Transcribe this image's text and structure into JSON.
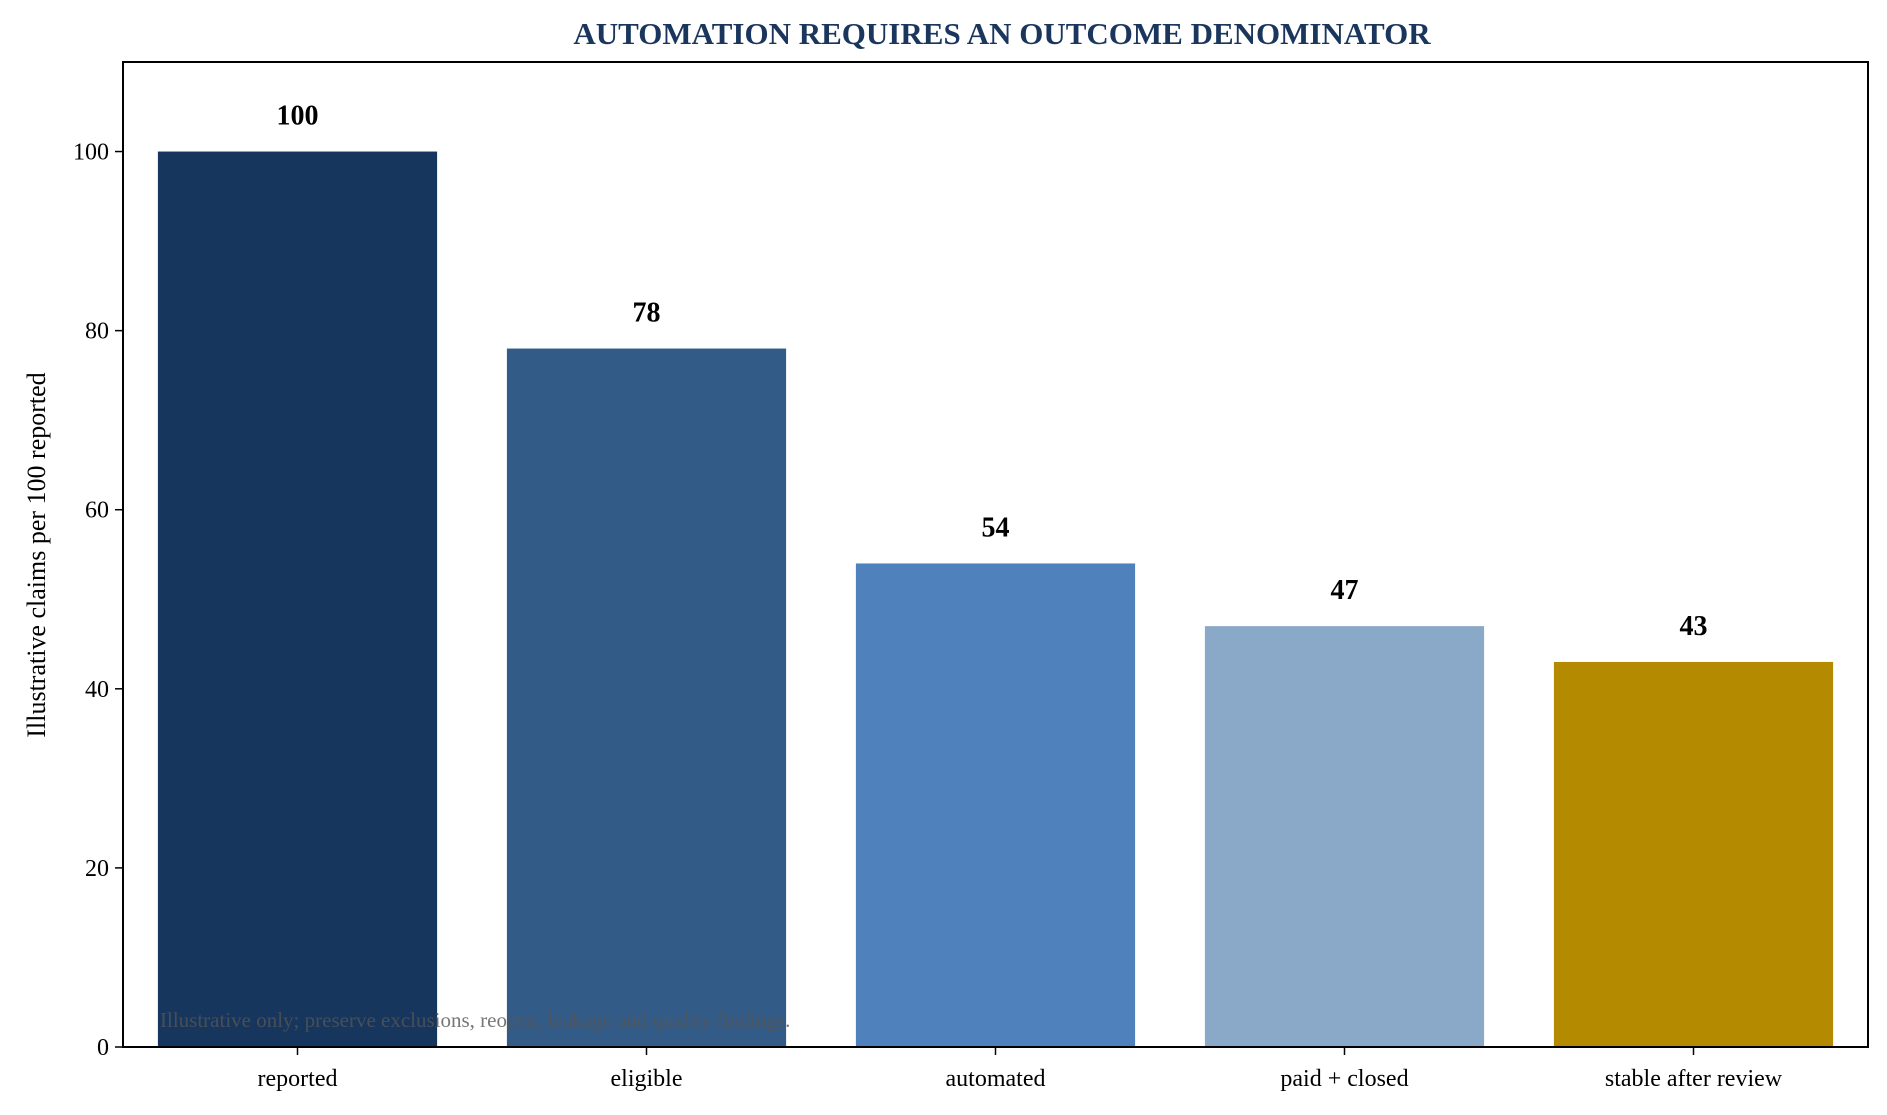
{
  "chart_data": {
    "type": "bar",
    "title": "AUTOMATION REQUIRES AN OUTCOME DENOMINATOR",
    "xlabel": "",
    "ylabel": "Illustrative claims per 100 reported",
    "categories": [
      "reported",
      "eligible",
      "automated",
      "paid + closed",
      "stable after review"
    ],
    "values": [
      100,
      78,
      54,
      47,
      43
    ],
    "data_labels": [
      "100",
      "78",
      "54",
      "47",
      "43"
    ],
    "colors": [
      "#17365d",
      "#325b87",
      "#4f81bd",
      "#8aa9c8",
      "#b38a00"
    ],
    "ylim": [
      0,
      110
    ],
    "yticks": [
      0,
      20,
      40,
      60,
      80,
      100
    ],
    "grid": false,
    "legend": "none",
    "annotation": "Illustrative only; preserve exclusions, reopen, leakage and quality findings."
  }
}
